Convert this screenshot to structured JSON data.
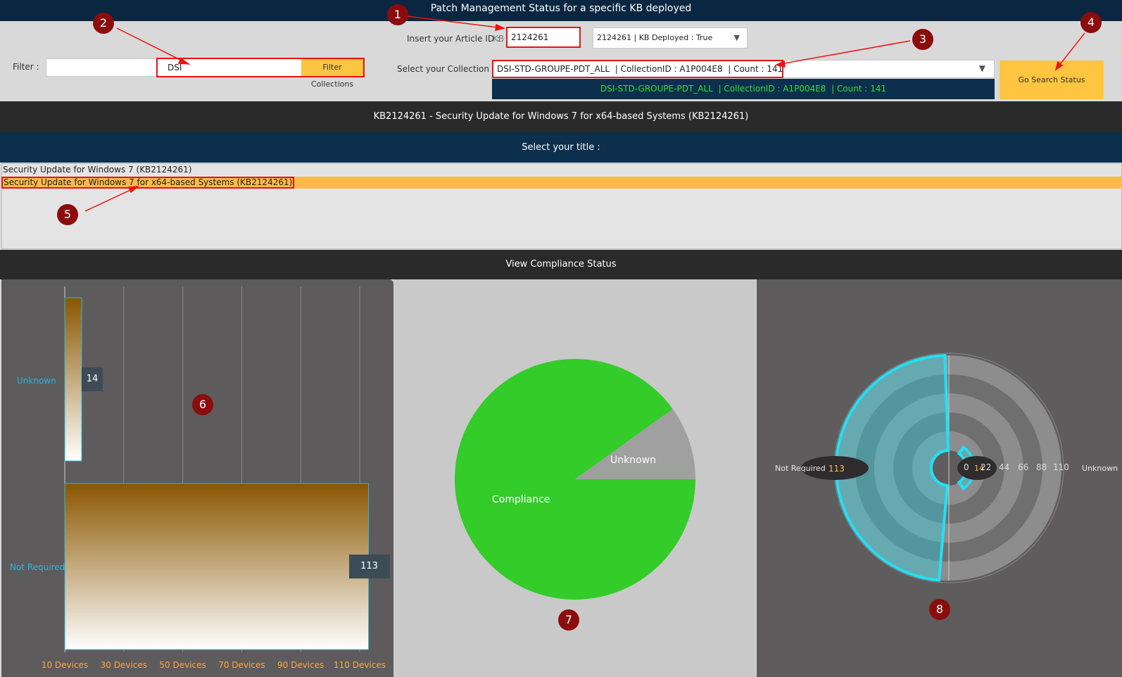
{
  "header": {
    "title": "Patch Management Status for a specific KB deployed"
  },
  "article": {
    "label": "Insert your Article ID :",
    "prefix": "KB",
    "value": "2124261",
    "dropdown_value": "2124261 | KB Deployed : True"
  },
  "filter": {
    "label": "Filter :",
    "value": "DSI",
    "button": "Filter Collections"
  },
  "collection": {
    "label": "Select your Collection :",
    "value": "DSI-STD-GROUPE-PDT_ALL  | CollectionID : A1P004E8  | Count : 141",
    "option": "DSI-STD-GROUPE-PDT_ALL  | CollectionID : A1P004E8  | Count : 141"
  },
  "search_button": "Go Search Status",
  "kb_title": "KB2124261 - Security Update for Windows 7 for x64-based Systems (KB2124261)",
  "select_title_label": "Select your title :",
  "titles": [
    "Security Update for Windows 7 (KB2124261)",
    "Security Update for Windows 7 for x64-based Systems (KB2124261)"
  ],
  "compliance_header": "View Compliance Status",
  "markers": [
    "1",
    "2",
    "3",
    "4",
    "5",
    "6",
    "7",
    "8"
  ],
  "colors": {
    "accent": "#ffc440",
    "title_bg": "#0b2640",
    "band_dark": "#2a2a2a",
    "pie_green": "#33cc29",
    "pie_gray": "#a0a0a0",
    "radial_cyan": "#22e0f5"
  },
  "chart_data": [
    {
      "type": "bar",
      "orientation": "horizontal",
      "categories": [
        "Unknown",
        "Not Required"
      ],
      "values": [
        14,
        113
      ],
      "x_ticks": [
        "10 Devices",
        "30 Devices",
        "50 Devices",
        "70 Devices",
        "90 Devices",
        "110 Devices"
      ],
      "xlim": [
        10,
        120
      ]
    },
    {
      "type": "pie",
      "labels": [
        "Compliance",
        "Unknown"
      ],
      "values": [
        127,
        14
      ]
    },
    {
      "type": "radial-bar",
      "categories": [
        "Not Required",
        "Unknown"
      ],
      "values": [
        113,
        14
      ],
      "ticks": [
        "0",
        "22",
        "44",
        "66",
        "88",
        "110"
      ]
    }
  ]
}
